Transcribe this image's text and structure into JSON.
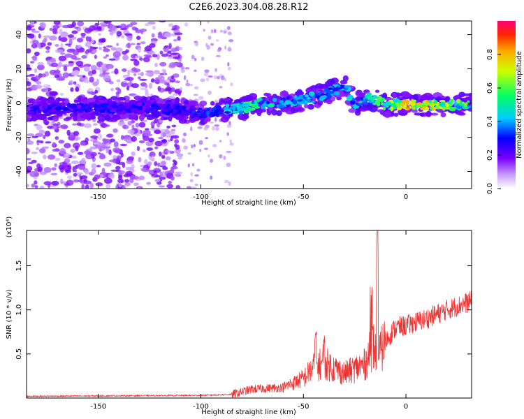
{
  "title": "C2E6.2023.304.08.28.R12",
  "chart_data": [
    {
      "type": "heatmap",
      "xlabel": "Height of straight line (km)",
      "ylabel": "Frequency (Hz)",
      "xlim": [
        -185,
        32
      ],
      "ylim": [
        -50,
        48
      ],
      "x_ticks": [
        -150,
        -100,
        -50,
        0
      ],
      "y_ticks": [
        -40,
        -20,
        0,
        20,
        40
      ],
      "colorbar": {
        "label": "Normalized spectral amplitude",
        "range": [
          0,
          1
        ],
        "ticks": [
          "0.0",
          "0.2",
          "0.4",
          "0.6",
          "0.8"
        ]
      },
      "ridge": [
        {
          "x": -185,
          "y": -4,
          "amp": 0.3
        },
        {
          "x": -150,
          "y": -3,
          "amp": 0.32
        },
        {
          "x": -120,
          "y": -3,
          "amp": 0.3
        },
        {
          "x": -100,
          "y": -6,
          "amp": 0.35
        },
        {
          "x": -90,
          "y": -4,
          "amp": 0.4
        },
        {
          "x": -80,
          "y": -3,
          "amp": 0.65
        },
        {
          "x": -70,
          "y": 0,
          "amp": 0.55
        },
        {
          "x": -60,
          "y": 0,
          "amp": 0.5
        },
        {
          "x": -50,
          "y": 2,
          "amp": 0.5
        },
        {
          "x": -40,
          "y": 5,
          "amp": 0.45
        },
        {
          "x": -30,
          "y": 10,
          "amp": 0.45
        },
        {
          "x": -25,
          "y": -1,
          "amp": 0.5
        },
        {
          "x": -18,
          "y": 3,
          "amp": 0.55
        },
        {
          "x": -10,
          "y": -1,
          "amp": 0.7
        },
        {
          "x": 0,
          "y": -1,
          "amp": 0.9
        },
        {
          "x": 10,
          "y": -1,
          "amp": 0.85
        },
        {
          "x": 20,
          "y": -1,
          "amp": 0.75
        },
        {
          "x": 32,
          "y": -1,
          "amp": 0.6
        }
      ],
      "colors": [
        "#ffffff",
        "#9400d3",
        "#0000ff",
        "#00ffff",
        "#00ff00",
        "#ffff00",
        "#ff0000",
        "#ff1493"
      ]
    },
    {
      "type": "line",
      "xlabel": "Height of straight line (km)",
      "ylabel": "SNR (10 * v/v)",
      "multiplier": "(x10⁴)",
      "xlim": [
        -185,
        32
      ],
      "ylim": [
        0,
        1.9
      ],
      "x_ticks": [
        -150,
        -100,
        -50,
        0
      ],
      "y_ticks": [
        "0.5",
        "1.0",
        "1.5"
      ],
      "color": "#ee3333",
      "trend": [
        {
          "x": -185,
          "y": 0.02
        },
        {
          "x": -100,
          "y": 0.03
        },
        {
          "x": -85,
          "y": 0.04
        },
        {
          "x": -75,
          "y": 0.1
        },
        {
          "x": -60,
          "y": 0.12
        },
        {
          "x": -50,
          "y": 0.22
        },
        {
          "x": -45,
          "y": 0.35
        },
        {
          "x": -40,
          "y": 0.4
        },
        {
          "x": -30,
          "y": 0.28
        },
        {
          "x": -20,
          "y": 0.38
        },
        {
          "x": -16,
          "y": 0.6
        },
        {
          "x": -14,
          "y": 0.45
        },
        {
          "x": -10,
          "y": 0.65
        },
        {
          "x": -5,
          "y": 0.8
        },
        {
          "x": 0,
          "y": 0.82
        },
        {
          "x": 10,
          "y": 0.9
        },
        {
          "x": 20,
          "y": 1.0
        },
        {
          "x": 32,
          "y": 1.1
        }
      ],
      "peaks": [
        {
          "x": -44,
          "y": 0.78
        },
        {
          "x": -40,
          "y": 0.72
        },
        {
          "x": -17,
          "y": 1.3
        },
        {
          "x": -14,
          "y": 1.9
        }
      ]
    }
  ]
}
